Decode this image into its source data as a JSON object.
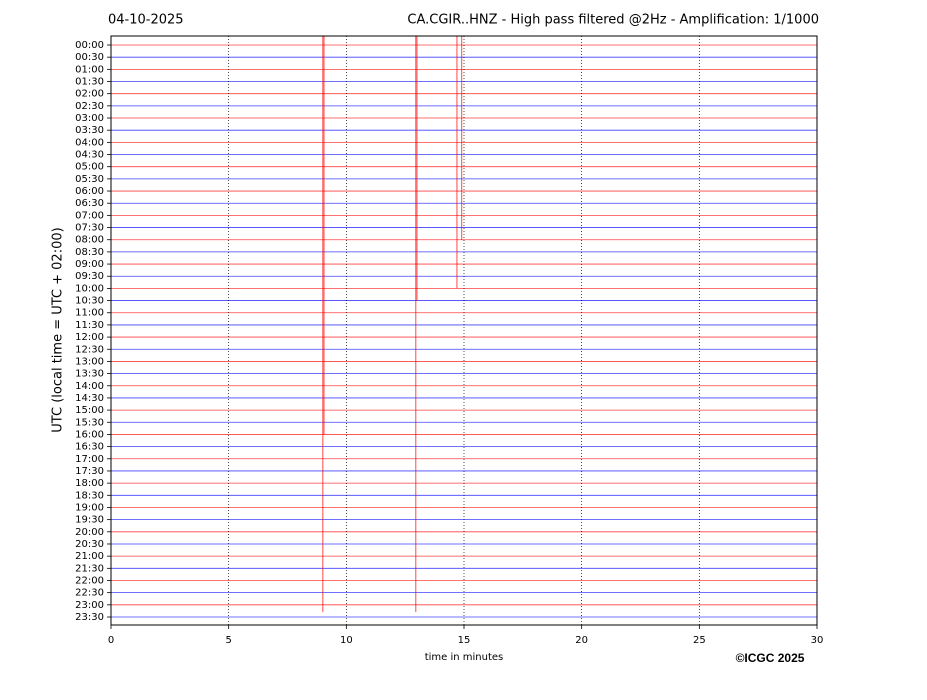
{
  "chart_data": {
    "type": "helicorder",
    "date": "04-10-2025",
    "title": "CA.CGIR..HNZ - High pass filtered @2Hz - Amplification: 1/1000",
    "ylabel": "UTC (local time = UTC + 02:00)",
    "xlabel": "time in minutes",
    "credit": "©ICGC 2025",
    "categories": [
      "00:00",
      "00:30",
      "01:00",
      "01:30",
      "02:00",
      "02:30",
      "03:00",
      "03:30",
      "04:00",
      "04:30",
      "05:00",
      "05:30",
      "06:00",
      "06:30",
      "07:00",
      "07:30",
      "08:00",
      "08:30",
      "09:00",
      "09:30",
      "10:00",
      "10:30",
      "11:00",
      "11:30",
      "12:00",
      "12:30",
      "13:00",
      "13:30",
      "14:00",
      "14:30",
      "15:00",
      "15:30",
      "16:00",
      "16:30",
      "17:00",
      "17:30",
      "18:00",
      "18:30",
      "19:00",
      "19:30",
      "20:00",
      "20:30",
      "21:00",
      "21:30",
      "22:00",
      "22:30",
      "23:00",
      "23:30"
    ],
    "colors": [
      "#ff0000",
      "#0000ff"
    ],
    "xlim": [
      0,
      30
    ],
    "xticks": [
      0,
      5,
      10,
      15,
      20,
      25,
      30
    ],
    "grid": true,
    "events": [
      {
        "x": 9.05,
        "rows": [
          -1,
          32
        ],
        "color": "#ff0000"
      },
      {
        "x": 9.0,
        "rows": [
          -1,
          46.6
        ],
        "color": "#ff0000"
      },
      {
        "x": 13.0,
        "rows": [
          -1,
          21
        ],
        "color": "#ff0000"
      },
      {
        "x": 12.95,
        "rows": [
          -1,
          46.6
        ],
        "color": "#ff0000"
      },
      {
        "x": 14.7,
        "rows": [
          -1,
          20
        ],
        "color": "#ff0000"
      },
      {
        "x": 14.9,
        "rows": [
          -1,
          16
        ],
        "color": "#ff0000"
      }
    ]
  }
}
